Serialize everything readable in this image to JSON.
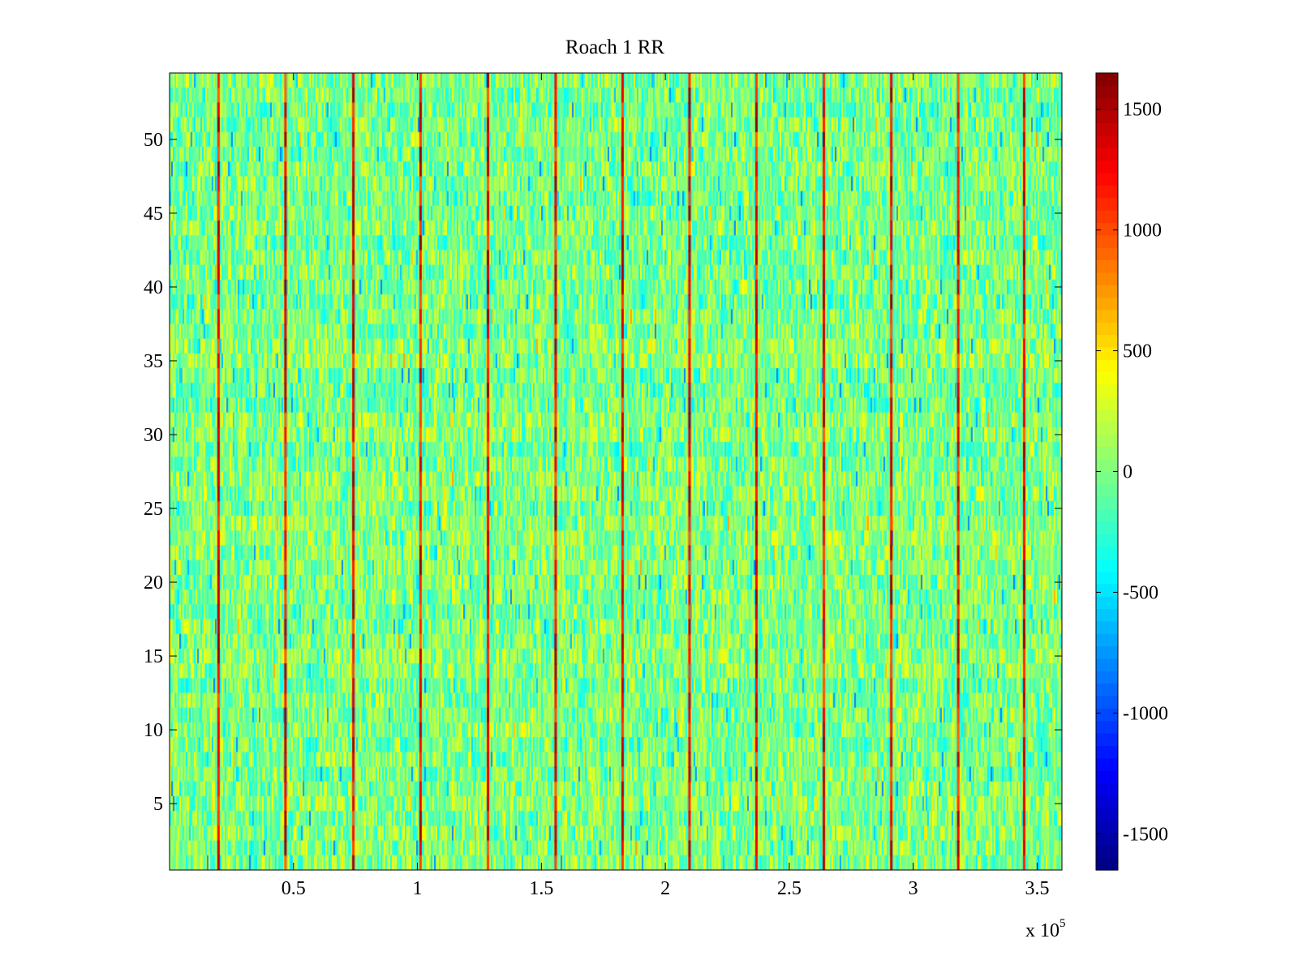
{
  "chart_data": {
    "type": "heatmap",
    "title": "Roach 1 RR",
    "xlabel": "",
    "ylabel": "",
    "x_exponent_label": "x 10",
    "x_exponent_power": "5",
    "xlim": [
      0,
      3.6
    ],
    "ylim": [
      0.5,
      54.5
    ],
    "x_ticks": [
      0.5,
      1,
      1.5,
      2,
      2.5,
      3,
      3.5
    ],
    "x_tick_labels": [
      "0.5",
      "1",
      "1.5",
      "2",
      "2.5",
      "3",
      "3.5"
    ],
    "y_ticks": [
      5,
      10,
      15,
      20,
      25,
      30,
      35,
      40,
      45,
      50
    ],
    "y_tick_labels": [
      "5",
      "10",
      "15",
      "20",
      "25",
      "30",
      "35",
      "40",
      "45",
      "50"
    ],
    "rows": 54,
    "colorbar": {
      "colormap": "jet",
      "clim": [
        -1650,
        1650
      ],
      "ticks": [
        -1500,
        -1000,
        -500,
        0,
        500,
        1000,
        1500
      ],
      "tick_labels": [
        "-1500",
        "-1000",
        "-500",
        "0",
        "500",
        "1000",
        "1500"
      ]
    },
    "value_summary": {
      "background_range": [
        -600,
        500
      ],
      "typical_value": 0
    },
    "spike_lines": {
      "x": [
        0.196,
        0.466,
        0.74,
        1.011,
        1.283,
        1.556,
        1.826,
        2.096,
        2.366,
        2.638,
        2.91,
        3.18,
        3.446
      ],
      "value": 1600
    }
  }
}
